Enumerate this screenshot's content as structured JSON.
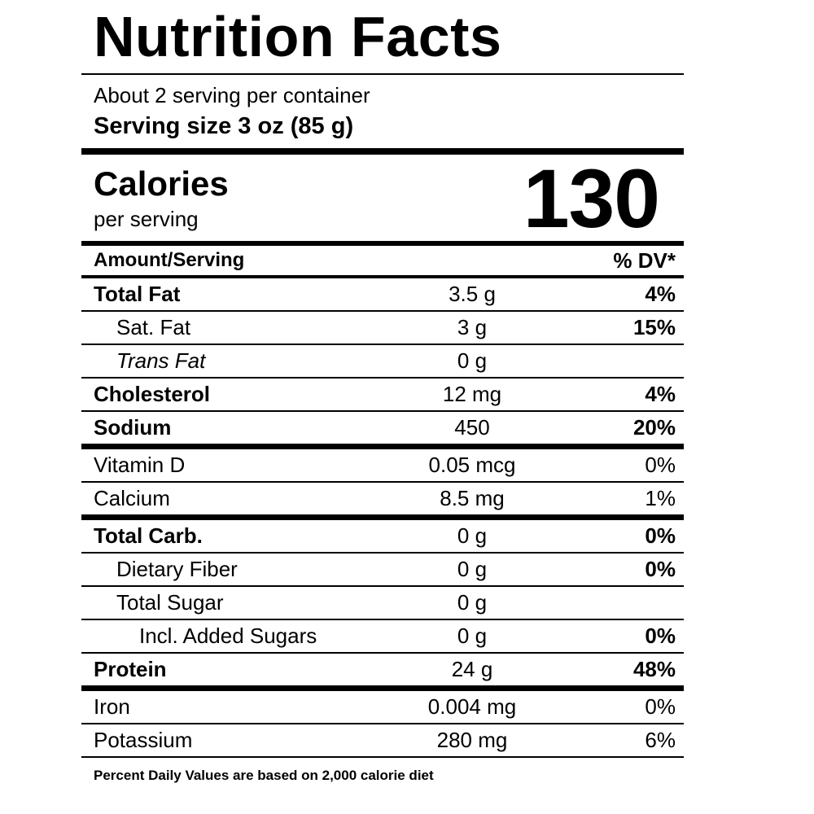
{
  "label": {
    "title": "Nutrition Facts",
    "servings_line": "About 2 serving per container",
    "serving_size": "Serving size 3 oz (85 g)",
    "calories": {
      "heading": "Calories",
      "subheading": "per serving",
      "value": "130"
    },
    "columns": {
      "amount_header": "Amount/Serving",
      "dv_header": "% DV*"
    },
    "rows": [
      {
        "name": "Total Fat",
        "amount": "3.5 g",
        "dv": "4%"
      },
      {
        "name": "Sat. Fat",
        "amount": "3 g",
        "dv": "15%"
      },
      {
        "name": "Trans Fat",
        "amount": "0 g",
        "dv": ""
      },
      {
        "name": "Cholesterol",
        "amount": "12 mg",
        "dv": "4%"
      },
      {
        "name": "Sodium",
        "amount": "450",
        "dv": "20%"
      },
      {
        "name": "Vitamin D",
        "amount": "0.05 mcg",
        "dv": "0%"
      },
      {
        "name": "Calcium",
        "amount": "8.5 mg",
        "dv": "1%"
      },
      {
        "name": "Total Carb.",
        "amount": "0 g",
        "dv": "0%"
      },
      {
        "name": "Dietary Fiber",
        "amount": "0 g",
        "dv": "0%"
      },
      {
        "name": "Total Sugar",
        "amount": "0 g",
        "dv": ""
      },
      {
        "name": "Incl. Added Sugars",
        "amount": "0 g",
        "dv": "0%"
      },
      {
        "name": "Protein",
        "amount": "24 g",
        "dv": "48%"
      },
      {
        "name": "Iron",
        "amount": "0.004 mg",
        "dv": "0%"
      },
      {
        "name": "Potassium",
        "amount": "280 mg",
        "dv": "6%"
      }
    ],
    "footnote": "Percent Daily Values are based on 2,000 calorie diet"
  }
}
